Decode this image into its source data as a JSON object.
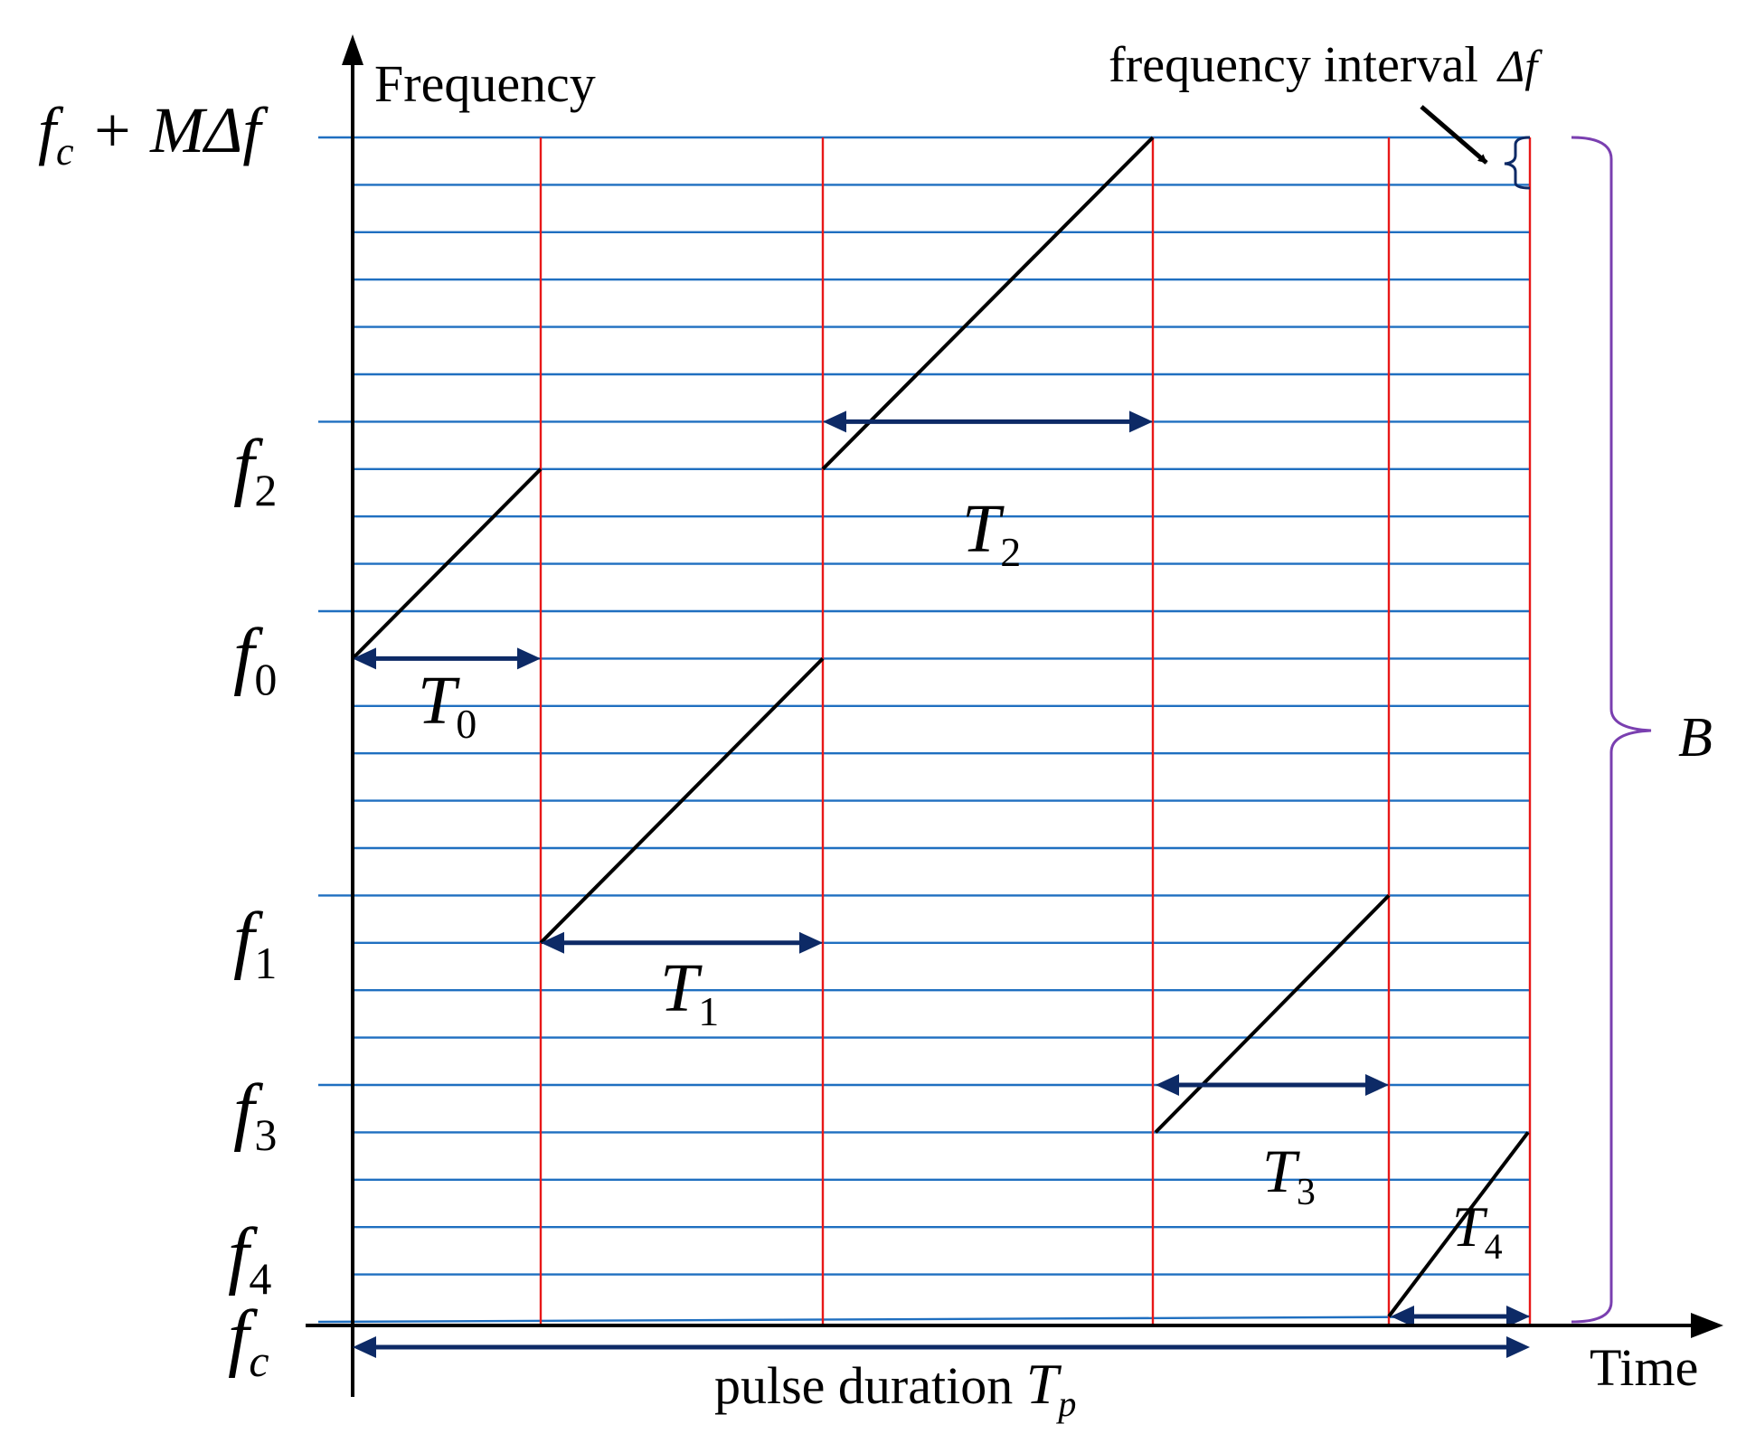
{
  "axes": {
    "y_label": "Frequency",
    "x_label": "Time"
  },
  "frequency_labels": [
    {
      "base": "f",
      "sub": "c",
      "rest": " + MΔf"
    },
    {
      "base": "f",
      "sub": "2",
      "rest": ""
    },
    {
      "base": "f",
      "sub": "0",
      "rest": ""
    },
    {
      "base": "f",
      "sub": "1",
      "rest": ""
    },
    {
      "base": "f",
      "sub": "3",
      "rest": ""
    },
    {
      "base": "f",
      "sub": "4",
      "rest": ""
    },
    {
      "base": "f",
      "sub": "c",
      "rest": ""
    }
  ],
  "duration_labels": [
    {
      "base": "T",
      "sub": "0"
    },
    {
      "base": "T",
      "sub": "1"
    },
    {
      "base": "T",
      "sub": "2"
    },
    {
      "base": "T",
      "sub": "3"
    },
    {
      "base": "T",
      "sub": "4"
    }
  ],
  "annotations": {
    "freq_interval_text": "frequency interval",
    "freq_interval_symbol": "Δf",
    "bandwidth_label": "B",
    "pulse_text": "pulse duration ",
    "pulse_base": "T",
    "pulse_sub": "p"
  },
  "grid": {
    "frequency_line_count": 26,
    "subpulse_count": 5
  },
  "colors": {
    "frequency_lines": "#1f6fc0",
    "subpulse_boundaries": "#e81818",
    "chirps": "#000000",
    "duration_arrows": "#0d2a66",
    "bandwidth_brace": "#7a3fb0",
    "axes": "#000000"
  }
}
